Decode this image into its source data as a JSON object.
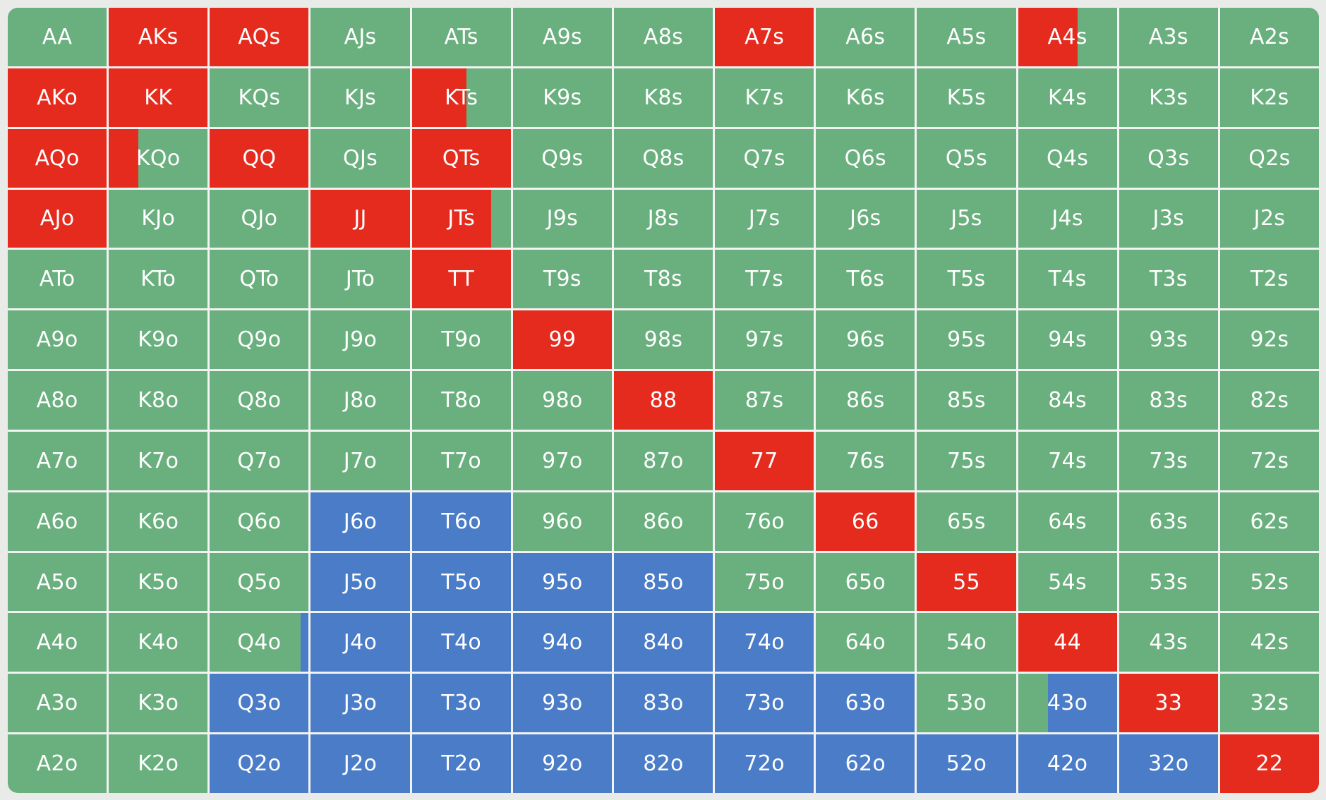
{
  "palette": {
    "fold": "#6aaf7e",
    "raise": "#e52b1d",
    "call": "#4a7cc7"
  },
  "grid": {
    "rows": [
      [
        {
          "hand": "AA",
          "action": "fold"
        },
        {
          "hand": "AKs",
          "action": "raise"
        },
        {
          "hand": "AQs",
          "action": "raise"
        },
        {
          "hand": "AJs",
          "action": "fold"
        },
        {
          "hand": "ATs",
          "action": "fold"
        },
        {
          "hand": "A9s",
          "action": "fold"
        },
        {
          "hand": "A8s",
          "action": "fold"
        },
        {
          "hand": "A7s",
          "action": "raise"
        },
        {
          "hand": "A6s",
          "action": "fold"
        },
        {
          "hand": "A5s",
          "action": "fold"
        },
        {
          "hand": "A4s",
          "action": "fold",
          "mix": {
            "action": "raise",
            "fraction": 0.6
          }
        },
        {
          "hand": "A3s",
          "action": "fold"
        },
        {
          "hand": "A2s",
          "action": "fold"
        }
      ],
      [
        {
          "hand": "AKo",
          "action": "raise"
        },
        {
          "hand": "KK",
          "action": "raise"
        },
        {
          "hand": "KQs",
          "action": "fold"
        },
        {
          "hand": "KJs",
          "action": "fold"
        },
        {
          "hand": "KTs",
          "action": "fold",
          "mix": {
            "action": "raise",
            "fraction": 0.55
          }
        },
        {
          "hand": "K9s",
          "action": "fold"
        },
        {
          "hand": "K8s",
          "action": "fold"
        },
        {
          "hand": "K7s",
          "action": "fold"
        },
        {
          "hand": "K6s",
          "action": "fold"
        },
        {
          "hand": "K5s",
          "action": "fold"
        },
        {
          "hand": "K4s",
          "action": "fold"
        },
        {
          "hand": "K3s",
          "action": "fold"
        },
        {
          "hand": "K2s",
          "action": "fold"
        }
      ],
      [
        {
          "hand": "AQo",
          "action": "raise"
        },
        {
          "hand": "KQo",
          "action": "fold",
          "mix": {
            "action": "raise",
            "fraction": 0.3
          }
        },
        {
          "hand": "QQ",
          "action": "raise"
        },
        {
          "hand": "QJs",
          "action": "fold"
        },
        {
          "hand": "QTs",
          "action": "raise"
        },
        {
          "hand": "Q9s",
          "action": "fold"
        },
        {
          "hand": "Q8s",
          "action": "fold"
        },
        {
          "hand": "Q7s",
          "action": "fold"
        },
        {
          "hand": "Q6s",
          "action": "fold"
        },
        {
          "hand": "Q5s",
          "action": "fold"
        },
        {
          "hand": "Q4s",
          "action": "fold"
        },
        {
          "hand": "Q3s",
          "action": "fold"
        },
        {
          "hand": "Q2s",
          "action": "fold"
        }
      ],
      [
        {
          "hand": "AJo",
          "action": "raise"
        },
        {
          "hand": "KJo",
          "action": "fold"
        },
        {
          "hand": "QJo",
          "action": "fold"
        },
        {
          "hand": "JJ",
          "action": "raise"
        },
        {
          "hand": "JTs",
          "action": "fold",
          "mix": {
            "action": "raise",
            "fraction": 0.8
          }
        },
        {
          "hand": "J9s",
          "action": "fold"
        },
        {
          "hand": "J8s",
          "action": "fold"
        },
        {
          "hand": "J7s",
          "action": "fold"
        },
        {
          "hand": "J6s",
          "action": "fold"
        },
        {
          "hand": "J5s",
          "action": "fold"
        },
        {
          "hand": "J4s",
          "action": "fold"
        },
        {
          "hand": "J3s",
          "action": "fold"
        },
        {
          "hand": "J2s",
          "action": "fold"
        }
      ],
      [
        {
          "hand": "ATo",
          "action": "fold"
        },
        {
          "hand": "KTo",
          "action": "fold"
        },
        {
          "hand": "QTo",
          "action": "fold"
        },
        {
          "hand": "JTo",
          "action": "fold"
        },
        {
          "hand": "TT",
          "action": "raise"
        },
        {
          "hand": "T9s",
          "action": "fold"
        },
        {
          "hand": "T8s",
          "action": "fold"
        },
        {
          "hand": "T7s",
          "action": "fold"
        },
        {
          "hand": "T6s",
          "action": "fold"
        },
        {
          "hand": "T5s",
          "action": "fold"
        },
        {
          "hand": "T4s",
          "action": "fold"
        },
        {
          "hand": "T3s",
          "action": "fold"
        },
        {
          "hand": "T2s",
          "action": "fold"
        }
      ],
      [
        {
          "hand": "A9o",
          "action": "fold"
        },
        {
          "hand": "K9o",
          "action": "fold"
        },
        {
          "hand": "Q9o",
          "action": "fold"
        },
        {
          "hand": "J9o",
          "action": "fold"
        },
        {
          "hand": "T9o",
          "action": "fold"
        },
        {
          "hand": "99",
          "action": "raise"
        },
        {
          "hand": "98s",
          "action": "fold"
        },
        {
          "hand": "97s",
          "action": "fold"
        },
        {
          "hand": "96s",
          "action": "fold"
        },
        {
          "hand": "95s",
          "action": "fold"
        },
        {
          "hand": "94s",
          "action": "fold"
        },
        {
          "hand": "93s",
          "action": "fold"
        },
        {
          "hand": "92s",
          "action": "fold"
        }
      ],
      [
        {
          "hand": "A8o",
          "action": "fold"
        },
        {
          "hand": "K8o",
          "action": "fold"
        },
        {
          "hand": "Q8o",
          "action": "fold"
        },
        {
          "hand": "J8o",
          "action": "fold"
        },
        {
          "hand": "T8o",
          "action": "fold"
        },
        {
          "hand": "98o",
          "action": "fold"
        },
        {
          "hand": "88",
          "action": "raise"
        },
        {
          "hand": "87s",
          "action": "fold"
        },
        {
          "hand": "86s",
          "action": "fold"
        },
        {
          "hand": "85s",
          "action": "fold"
        },
        {
          "hand": "84s",
          "action": "fold"
        },
        {
          "hand": "83s",
          "action": "fold"
        },
        {
          "hand": "82s",
          "action": "fold"
        }
      ],
      [
        {
          "hand": "A7o",
          "action": "fold"
        },
        {
          "hand": "K7o",
          "action": "fold"
        },
        {
          "hand": "Q7o",
          "action": "fold"
        },
        {
          "hand": "J7o",
          "action": "fold"
        },
        {
          "hand": "T7o",
          "action": "fold"
        },
        {
          "hand": "97o",
          "action": "fold"
        },
        {
          "hand": "87o",
          "action": "fold"
        },
        {
          "hand": "77",
          "action": "raise"
        },
        {
          "hand": "76s",
          "action": "fold"
        },
        {
          "hand": "75s",
          "action": "fold"
        },
        {
          "hand": "74s",
          "action": "fold"
        },
        {
          "hand": "73s",
          "action": "fold"
        },
        {
          "hand": "72s",
          "action": "fold"
        }
      ],
      [
        {
          "hand": "A6o",
          "action": "fold"
        },
        {
          "hand": "K6o",
          "action": "fold"
        },
        {
          "hand": "Q6o",
          "action": "fold"
        },
        {
          "hand": "J6o",
          "action": "call"
        },
        {
          "hand": "T6o",
          "action": "call"
        },
        {
          "hand": "96o",
          "action": "fold"
        },
        {
          "hand": "86o",
          "action": "fold"
        },
        {
          "hand": "76o",
          "action": "fold"
        },
        {
          "hand": "66",
          "action": "raise"
        },
        {
          "hand": "65s",
          "action": "fold"
        },
        {
          "hand": "64s",
          "action": "fold"
        },
        {
          "hand": "63s",
          "action": "fold"
        },
        {
          "hand": "62s",
          "action": "fold"
        }
      ],
      [
        {
          "hand": "A5o",
          "action": "fold"
        },
        {
          "hand": "K5o",
          "action": "fold"
        },
        {
          "hand": "Q5o",
          "action": "fold"
        },
        {
          "hand": "J5o",
          "action": "call"
        },
        {
          "hand": "T5o",
          "action": "call"
        },
        {
          "hand": "95o",
          "action": "call"
        },
        {
          "hand": "85o",
          "action": "call"
        },
        {
          "hand": "75o",
          "action": "fold"
        },
        {
          "hand": "65o",
          "action": "fold"
        },
        {
          "hand": "55",
          "action": "raise"
        },
        {
          "hand": "54s",
          "action": "fold"
        },
        {
          "hand": "53s",
          "action": "fold"
        },
        {
          "hand": "52s",
          "action": "fold"
        }
      ],
      [
        {
          "hand": "A4o",
          "action": "fold"
        },
        {
          "hand": "K4o",
          "action": "fold"
        },
        {
          "hand": "Q4o",
          "action": "fold",
          "mix": {
            "action": "call",
            "fraction": 0.08,
            "side": "right"
          }
        },
        {
          "hand": "J4o",
          "action": "call"
        },
        {
          "hand": "T4o",
          "action": "call"
        },
        {
          "hand": "94o",
          "action": "call"
        },
        {
          "hand": "84o",
          "action": "call"
        },
        {
          "hand": "74o",
          "action": "call"
        },
        {
          "hand": "64o",
          "action": "fold"
        },
        {
          "hand": "54o",
          "action": "fold"
        },
        {
          "hand": "44",
          "action": "raise"
        },
        {
          "hand": "43s",
          "action": "fold"
        },
        {
          "hand": "42s",
          "action": "fold"
        }
      ],
      [
        {
          "hand": "A3o",
          "action": "fold"
        },
        {
          "hand": "K3o",
          "action": "fold"
        },
        {
          "hand": "Q3o",
          "action": "call"
        },
        {
          "hand": "J3o",
          "action": "call"
        },
        {
          "hand": "T3o",
          "action": "call"
        },
        {
          "hand": "93o",
          "action": "call"
        },
        {
          "hand": "83o",
          "action": "call"
        },
        {
          "hand": "73o",
          "action": "call"
        },
        {
          "hand": "63o",
          "action": "call"
        },
        {
          "hand": "53o",
          "action": "fold"
        },
        {
          "hand": "43o",
          "action": "call",
          "mix": {
            "action": "fold",
            "fraction": 0.3
          }
        },
        {
          "hand": "33",
          "action": "raise"
        },
        {
          "hand": "32s",
          "action": "fold"
        }
      ],
      [
        {
          "hand": "A2o",
          "action": "fold"
        },
        {
          "hand": "K2o",
          "action": "fold"
        },
        {
          "hand": "Q2o",
          "action": "call"
        },
        {
          "hand": "J2o",
          "action": "call"
        },
        {
          "hand": "T2o",
          "action": "call"
        },
        {
          "hand": "92o",
          "action": "call"
        },
        {
          "hand": "82o",
          "action": "call"
        },
        {
          "hand": "72o",
          "action": "call"
        },
        {
          "hand": "62o",
          "action": "call"
        },
        {
          "hand": "52o",
          "action": "call"
        },
        {
          "hand": "42o",
          "action": "call"
        },
        {
          "hand": "32o",
          "action": "call"
        },
        {
          "hand": "22",
          "action": "raise"
        }
      ]
    ]
  }
}
